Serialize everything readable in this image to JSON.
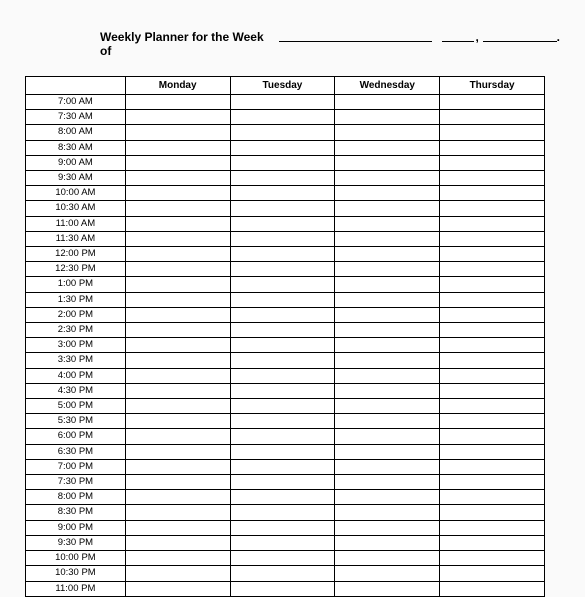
{
  "title": {
    "text": "Weekly Planner for the Week of",
    "comma": ",",
    "period": "."
  },
  "table": {
    "columns": [
      "Monday",
      "Tuesday",
      "Wednesday",
      "Thursday"
    ],
    "times": [
      "7:00 AM",
      "7:30 AM",
      "8:00 AM",
      "8:30 AM",
      "9:00 AM",
      "9:30 AM",
      "10:00 AM",
      "10:30 AM",
      "11:00 AM",
      "11:30 AM",
      "12:00 PM",
      "12:30 PM",
      "1:00 PM",
      "1:30 PM",
      "2:00 PM",
      "2:30 PM",
      "3:00 PM",
      "3:30 PM",
      "4:00 PM",
      "4:30 PM",
      "5:00 PM",
      "5:30 PM",
      "6:00 PM",
      "6:30 PM",
      "7:00 PM",
      "7:30 PM",
      "8:00 PM",
      "8:30 PM",
      "9:00 PM",
      "9:30 PM",
      "10:00 PM",
      "10:30 PM",
      "11:00 PM"
    ],
    "time_col_width": 100,
    "day_col_width": 105,
    "border_color": "#000000",
    "background_color": "#ffffff",
    "header_fontsize": 10,
    "cell_fontsize": 9.5,
    "row_height": 14.2
  },
  "styling": {
    "page_background": "#fafafa",
    "title_fontsize": 12,
    "title_fontweight": "bold"
  }
}
